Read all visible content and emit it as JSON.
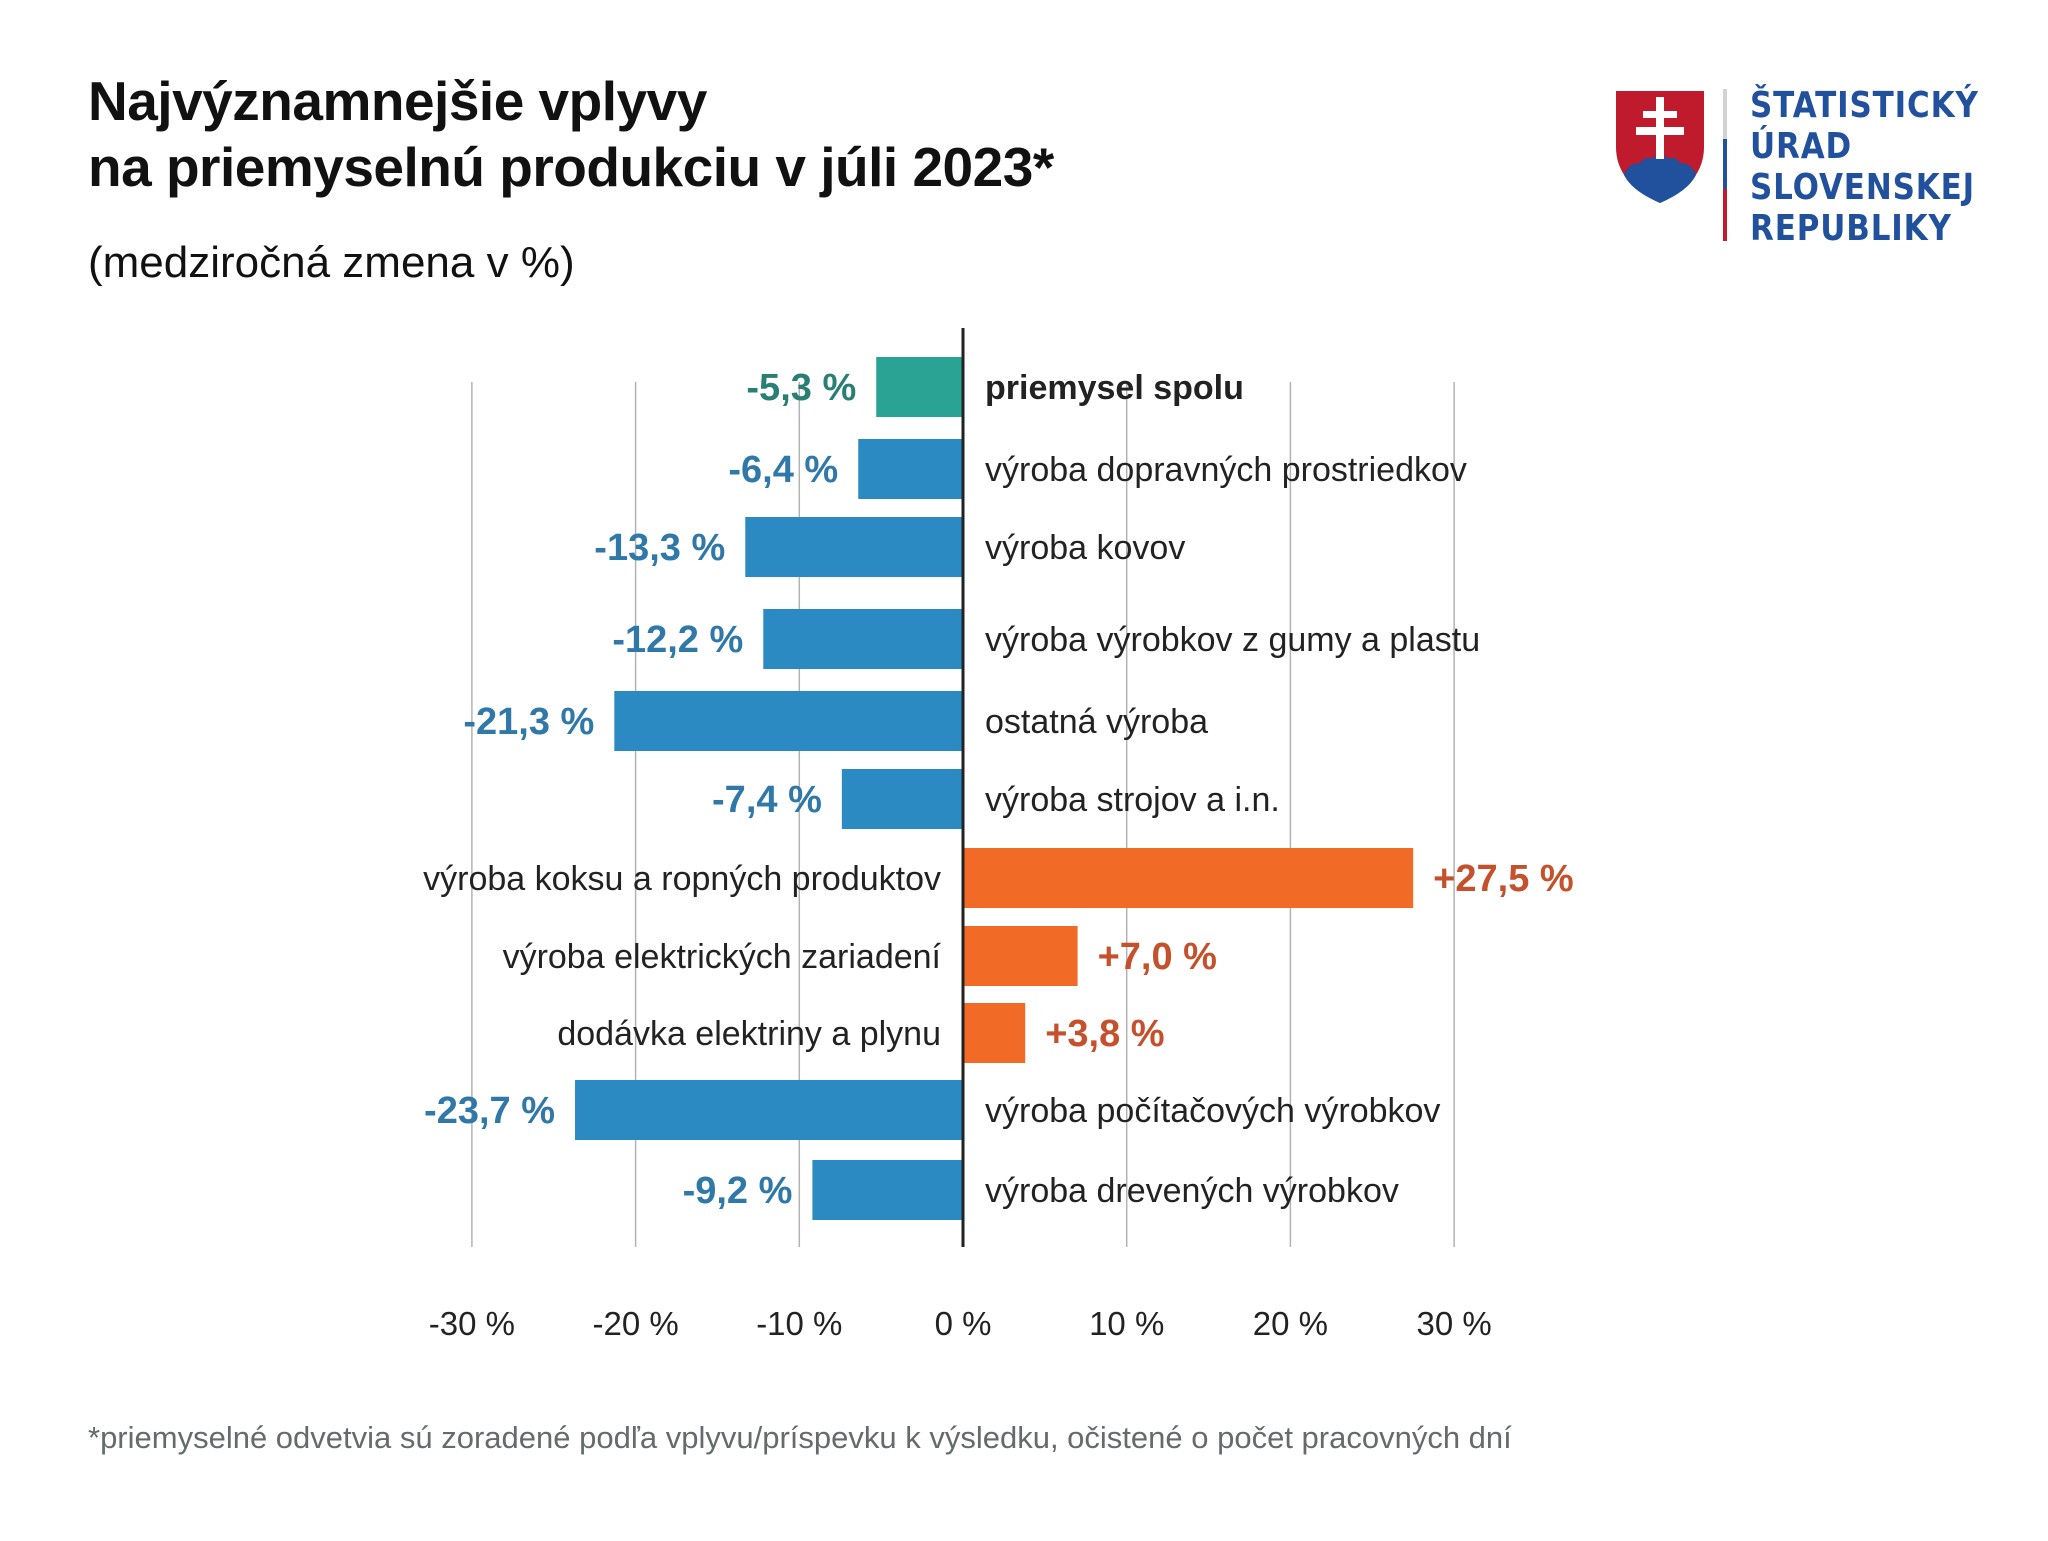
{
  "header": {
    "title_lines": [
      "Najvýznamnejšie vplyvy",
      "na priemyselnú produkciu v júli 2023*"
    ],
    "subtitle": "(medziročná zmena v %)"
  },
  "logo": {
    "icon": "slovak-coat-of-arms-icon",
    "lines": [
      "ŠTATISTICKÝ",
      "ÚRAD",
      "SLOVENSKEJ",
      "REPUBLIKY"
    ],
    "colors": {
      "text": "#21509c",
      "red": "#bf1b2c",
      "blue": "#21509c",
      "gray": "#d0d2d3",
      "white": "#ffffff"
    }
  },
  "colors": {
    "total_bar": "#2aa395",
    "total_label": "#2a7f74",
    "negative_bar": "#2c8ac2",
    "negative_label": "#2f78a8",
    "positive_bar": "#f26b26",
    "positive_label": "#c4512b",
    "category_text": "#222222",
    "axis_line": "#222222",
    "grid": "#b3b3b3",
    "tick_text": "#222222"
  },
  "chart_data": {
    "type": "bar",
    "orientation": "horizontal",
    "title": "Najvýznamnejšie vplyvy na priemyselnú produkciu v júli 2023*",
    "subtitle": "(medziročná zmena v %)",
    "xlabel": "",
    "ylabel": "",
    "xlim": [
      -30,
      30
    ],
    "grid": true,
    "legend": "none",
    "x_ticks": [
      -30,
      -20,
      -10,
      0,
      10,
      20,
      30
    ],
    "x_tick_labels": [
      "-30 %",
      "-20 %",
      "-10 %",
      "0 %",
      "10 %",
      "20 %",
      "30 %"
    ],
    "categories": [
      "priemysel spolu",
      "výroba dopravných prostriedkov",
      "výroba kovov",
      "výroba výrobkov z gumy a plastu",
      "ostatná výroba",
      "výroba strojov a i.n.",
      "výroba koksu a ropných produktov",
      "výroba elektrických zariadení",
      "dodávka elektriny a plynu",
      "výroba počítačových výrobkov",
      "výroba drevených výrobkov"
    ],
    "values": [
      -5.3,
      -6.4,
      -13.3,
      -12.2,
      -21.3,
      -7.4,
      27.5,
      7.0,
      3.8,
      -23.7,
      -9.2
    ],
    "value_labels": [
      "-5,3 %",
      "-6,4 %",
      "-13,3 %",
      "-12,2 %",
      "-21,3 %",
      "-7,4 %",
      "+27,5 %",
      "+7,0 %",
      "+3,8 %",
      "-23,7 %",
      "-9,2 %"
    ],
    "highlight": [
      true,
      false,
      false,
      false,
      false,
      false,
      false,
      false,
      false,
      false,
      false
    ]
  },
  "footnote": "*priemyselné odvetvia sú zoradené podľa vplyvu/príspevku k výsledku, očistené o počet pracovných dní"
}
